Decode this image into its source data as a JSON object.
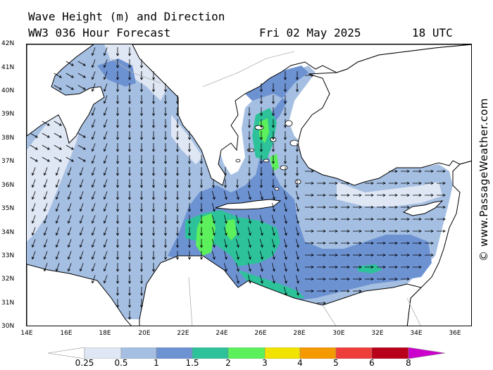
{
  "header": {
    "title_line1": "Wave Height (m) and Direction",
    "model": "WW3 036 Hour Forecast",
    "date": "Fri 02 May 2025",
    "time": "18 UTC"
  },
  "axes": {
    "lat_labels": [
      "42N",
      "41N",
      "40N",
      "39N",
      "38N",
      "37N",
      "36N",
      "35N",
      "34N",
      "33N",
      "32N",
      "31N",
      "30N"
    ],
    "lon_labels": [
      "14E",
      "16E",
      "18E",
      "20E",
      "22E",
      "24E",
      "26E",
      "28E",
      "30E",
      "32E",
      "34E",
      "36E"
    ]
  },
  "credit": "© www.PassageWeather.com",
  "colorbar": {
    "labels": [
      "0.25",
      "0.5",
      "1",
      "1.5",
      "2",
      "3",
      "4",
      "5",
      "6",
      "8"
    ],
    "colors": [
      "#dfe6f4",
      "#a5bfe2",
      "#6d92d2",
      "#2ec29a",
      "#5cf05c",
      "#f2e200",
      "#f49a00",
      "#ee3e3a",
      "#b8001a",
      "#cc00cc"
    ]
  },
  "palette": {
    "land": "#ffffff",
    "coast": "#000000",
    "border": "#b0b0b0"
  }
}
